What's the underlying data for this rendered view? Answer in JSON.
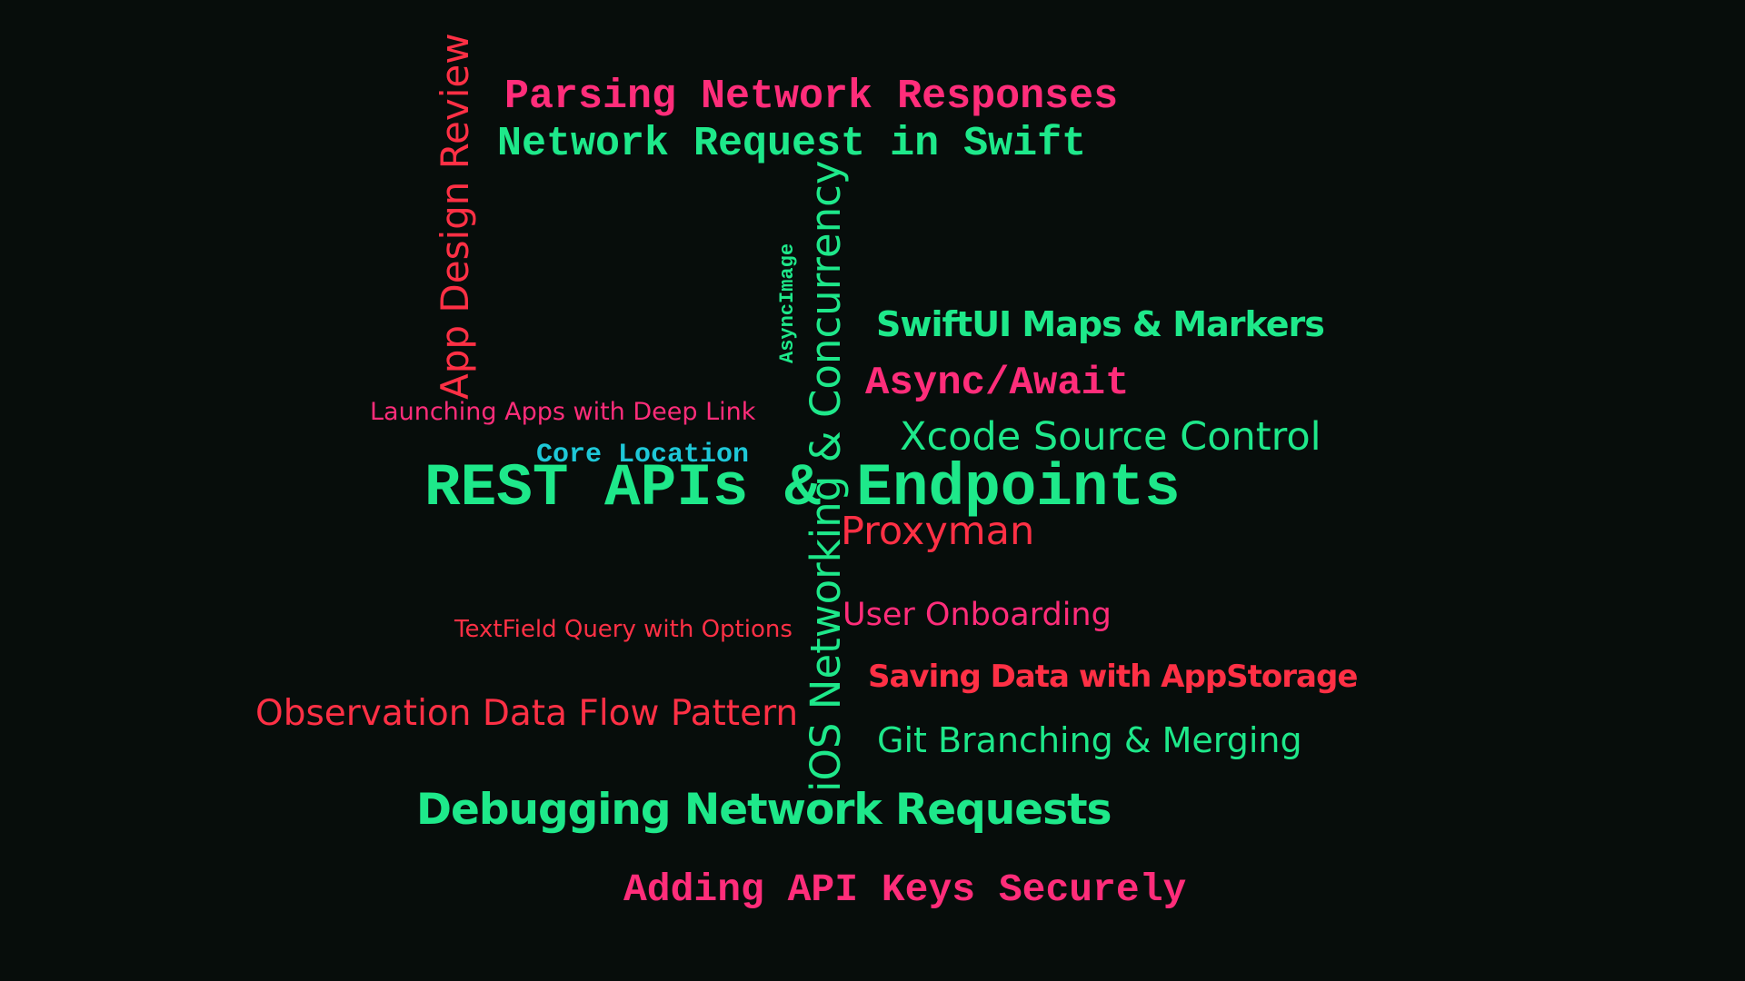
{
  "colors": {
    "background": "#070d0b",
    "green": "#1ee88a",
    "pink": "#ff2d7a",
    "red": "#ff3045",
    "cyan": "#1ec8d8"
  },
  "words": {
    "parsing_network_responses": "Parsing Network Responses",
    "network_request_in_swift": "Network Request in Swift",
    "app_design_review": "App Design Review",
    "asyncimage": "AsyncImage",
    "ios_networking_concurrency": "iOS Networking & Concurrency",
    "swiftui_maps_markers": "SwiftUI Maps & Markers",
    "async_await": "Async/Await",
    "launching_apps_deep_link": "Launching Apps with Deep Link",
    "core_location": "Core Location",
    "xcode_source_control": "Xcode Source Control",
    "rest_apis_endpoints": "REST APIs & Endpoints",
    "proxyman": "Proxyman",
    "user_onboarding": "User Onboarding",
    "textfield_query_options": "TextField Query with Options",
    "saving_data_appstorage": "Saving Data with AppStorage",
    "observation_data_flow": "Observation Data Flow Pattern",
    "git_branching_merging": "Git Branching & Merging",
    "debugging_network_requests": "Debugging Network Requests",
    "adding_api_keys": "Adding API Keys Securely"
  }
}
